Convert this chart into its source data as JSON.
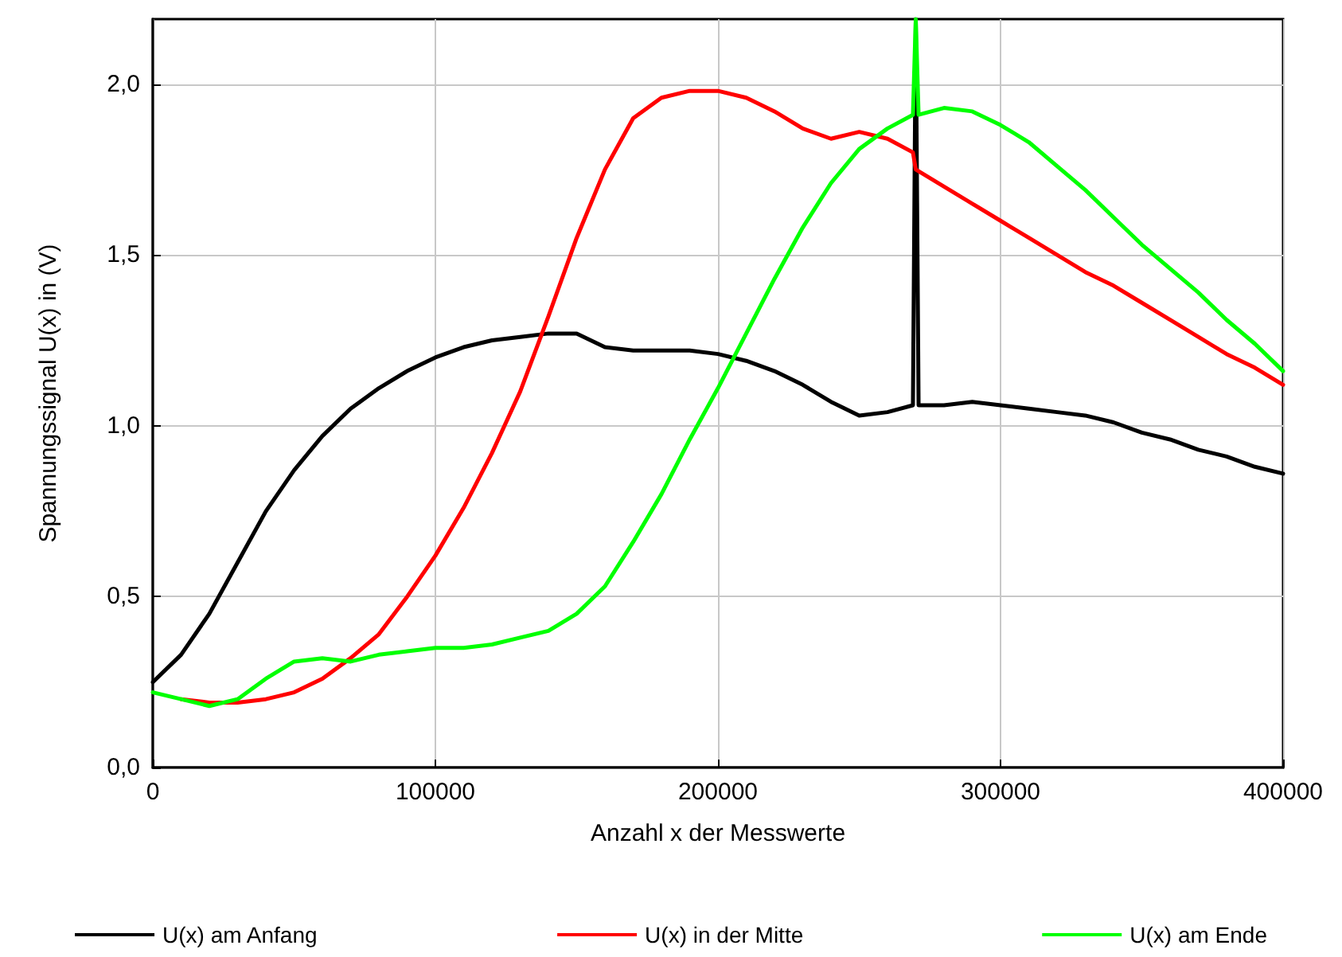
{
  "chart_data": {
    "type": "line",
    "xlabel": "Anzahl x der Messwerte",
    "ylabel": "Spannungssignal U(x) in (V)",
    "xlim": [
      0,
      400000
    ],
    "xticks": [
      0,
      100000,
      200000,
      300000,
      400000
    ],
    "ylim": [
      0,
      2.19
    ],
    "yticks": [
      {
        "value": 0,
        "label": "0,0"
      },
      {
        "value": 0.5,
        "label": "0,5"
      },
      {
        "value": 1,
        "label": "1,0"
      },
      {
        "value": 1.5,
        "label": "1,5"
      },
      {
        "value": 2,
        "label": "2,0"
      }
    ],
    "grid": true,
    "legend": "bottom",
    "marker": "none",
    "line_style": "solid",
    "series": [
      {
        "name": "U(x) am Anfang",
        "color": "#000000",
        "x": [
          0,
          10000,
          20000,
          30000,
          40000,
          50000,
          60000,
          70000,
          80000,
          90000,
          100000,
          110000,
          120000,
          130000,
          140000,
          150000,
          160000,
          170000,
          180000,
          190000,
          200000,
          210000,
          220000,
          230000,
          240000,
          250000,
          260000,
          269000,
          270000,
          271000,
          280000,
          290000,
          300000,
          310000,
          320000,
          330000,
          340000,
          350000,
          360000,
          370000,
          380000,
          390000,
          400000
        ],
        "values": [
          0.25,
          0.33,
          0.45,
          0.6,
          0.75,
          0.87,
          0.97,
          1.05,
          1.11,
          1.16,
          1.2,
          1.23,
          1.25,
          1.26,
          1.27,
          1.27,
          1.23,
          1.22,
          1.22,
          1.22,
          1.21,
          1.19,
          1.16,
          1.12,
          1.07,
          1.03,
          1.04,
          1.06,
          2.19,
          1.06,
          1.06,
          1.07,
          1.06,
          1.05,
          1.04,
          1.03,
          1.01,
          0.98,
          0.96,
          0.93,
          0.91,
          0.88,
          0.86
        ]
      },
      {
        "name": "U(x) in der Mitte",
        "color": "#ff0000",
        "x": [
          10000,
          20000,
          30000,
          40000,
          50000,
          60000,
          70000,
          80000,
          90000,
          100000,
          110000,
          120000,
          130000,
          140000,
          150000,
          160000,
          170000,
          180000,
          190000,
          200000,
          210000,
          220000,
          230000,
          240000,
          250000,
          260000,
          269000,
          270000,
          280000,
          290000,
          300000,
          310000,
          320000,
          330000,
          340000,
          350000,
          360000,
          370000,
          380000,
          390000,
          400000
        ],
        "values": [
          0.2,
          0.19,
          0.19,
          0.2,
          0.22,
          0.26,
          0.32,
          0.39,
          0.5,
          0.62,
          0.76,
          0.92,
          1.1,
          1.32,
          1.55,
          1.75,
          1.9,
          1.96,
          1.98,
          1.98,
          1.96,
          1.92,
          1.87,
          1.84,
          1.86,
          1.84,
          1.8,
          1.75,
          1.7,
          1.65,
          1.6,
          1.55,
          1.5,
          1.45,
          1.41,
          1.36,
          1.31,
          1.26,
          1.21,
          1.17,
          1.12
        ]
      },
      {
        "name": "U(x) am Ende",
        "color": "#00ff00",
        "x": [
          0,
          10000,
          20000,
          30000,
          40000,
          50000,
          60000,
          70000,
          80000,
          90000,
          100000,
          110000,
          120000,
          130000,
          140000,
          150000,
          160000,
          170000,
          180000,
          190000,
          200000,
          210000,
          220000,
          230000,
          240000,
          250000,
          260000,
          269000,
          270000,
          271000,
          280000,
          290000,
          300000,
          310000,
          320000,
          330000,
          340000,
          350000,
          360000,
          370000,
          380000,
          390000,
          400000
        ],
        "values": [
          0.22,
          0.2,
          0.18,
          0.2,
          0.26,
          0.31,
          0.32,
          0.31,
          0.33,
          0.34,
          0.35,
          0.35,
          0.36,
          0.38,
          0.4,
          0.45,
          0.53,
          0.66,
          0.8,
          0.96,
          1.11,
          1.27,
          1.43,
          1.58,
          1.71,
          1.81,
          1.87,
          1.91,
          2.19,
          1.91,
          1.93,
          1.92,
          1.88,
          1.83,
          1.76,
          1.69,
          1.61,
          1.53,
          1.46,
          1.39,
          1.31,
          1.24,
          1.16
        ]
      }
    ]
  }
}
